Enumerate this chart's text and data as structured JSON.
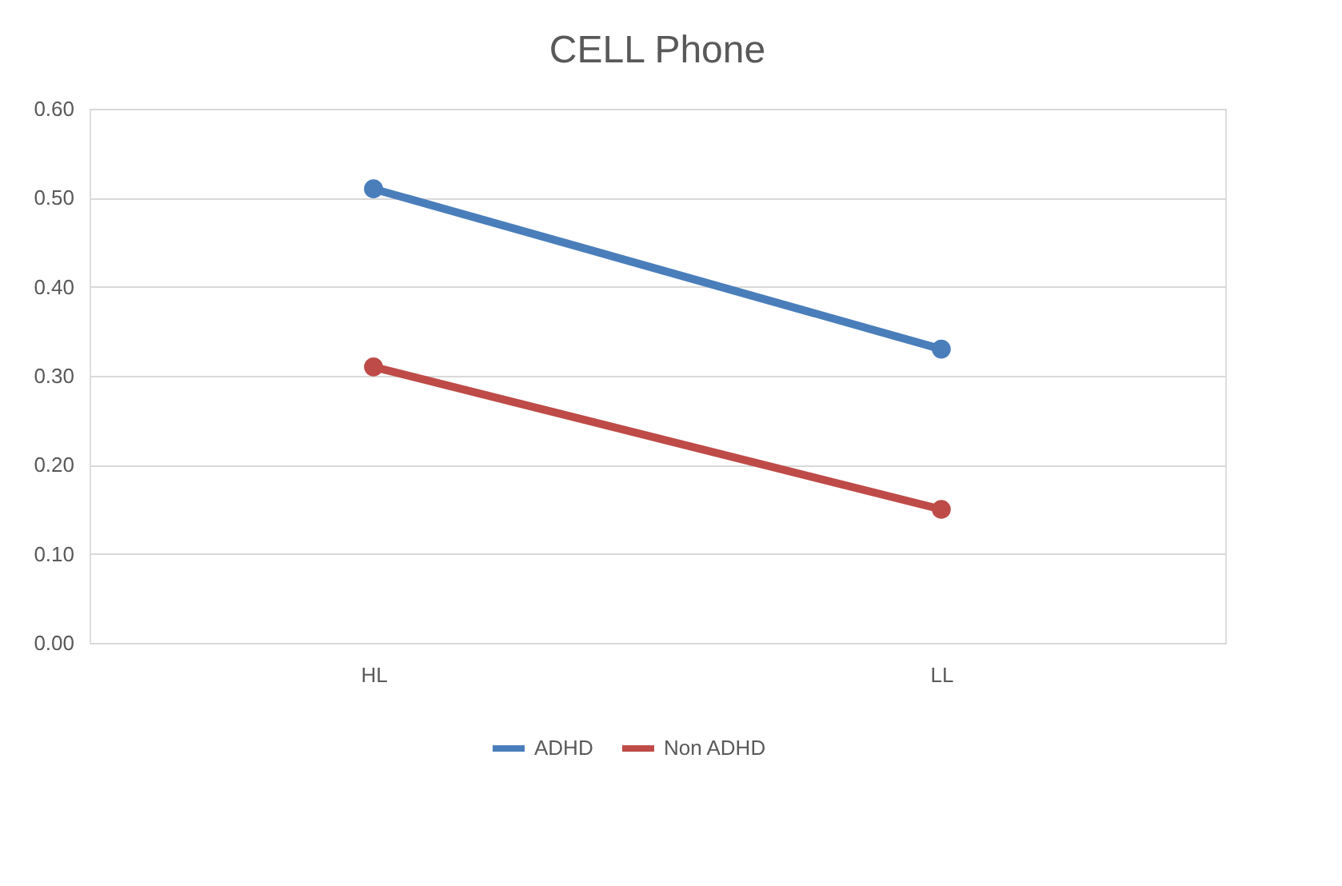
{
  "chart_data": {
    "type": "line",
    "title": "CELL Phone",
    "categories": [
      "HL",
      "LL"
    ],
    "series": [
      {
        "name": "ADHD",
        "color": "#4a7ebb",
        "values": [
          0.51,
          0.33
        ]
      },
      {
        "name": "Non ADHD",
        "color": "#be4b48",
        "values": [
          0.31,
          0.15
        ]
      }
    ],
    "ylim": [
      0,
      0.6
    ],
    "yticks": [
      {
        "value": 0,
        "label": "0.00"
      },
      {
        "value": 0.1,
        "label": "0.10"
      },
      {
        "value": 0.2,
        "label": "0.20"
      },
      {
        "value": 0.3,
        "label": "0.30"
      },
      {
        "value": 0.4,
        "label": "0.40"
      },
      {
        "value": 0.5,
        "label": "0.50"
      },
      {
        "value": 0.6,
        "label": "0.60"
      }
    ],
    "grid": "y",
    "legend": "bottom",
    "marker": "circle",
    "line_style": "solid"
  }
}
